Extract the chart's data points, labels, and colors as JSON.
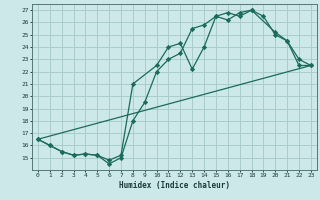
{
  "title": "",
  "xlabel": "Humidex (Indice chaleur)",
  "ylabel": "",
  "bg_color": "#cce8e8",
  "grid_color": "#aacccc",
  "line_color": "#1a6b5a",
  "xlim": [
    -0.5,
    23.5
  ],
  "ylim": [
    14,
    27.5
  ],
  "xticks": [
    0,
    1,
    2,
    3,
    4,
    5,
    6,
    7,
    8,
    9,
    10,
    11,
    12,
    13,
    14,
    15,
    16,
    17,
    18,
    19,
    20,
    21,
    22,
    23
  ],
  "yticks": [
    15,
    16,
    17,
    18,
    19,
    20,
    21,
    22,
    23,
    24,
    25,
    26,
    27
  ],
  "line1_x": [
    0,
    1,
    2,
    3,
    4,
    5,
    6,
    7,
    8,
    9,
    10,
    11,
    12,
    13,
    14,
    15,
    16,
    17,
    18,
    19,
    20,
    21,
    22,
    23
  ],
  "line1_y": [
    16.5,
    16.0,
    15.5,
    15.2,
    15.3,
    15.2,
    14.5,
    15.0,
    18.0,
    19.5,
    22.0,
    23.0,
    23.5,
    25.5,
    25.8,
    26.5,
    26.8,
    26.5,
    27.0,
    26.5,
    25.0,
    24.5,
    23.0,
    22.5
  ],
  "line2_x": [
    0,
    1,
    2,
    3,
    4,
    5,
    6,
    7,
    8,
    10,
    11,
    12,
    13,
    14,
    15,
    16,
    17,
    18,
    20,
    21,
    22,
    23
  ],
  "line2_y": [
    16.5,
    16.0,
    15.5,
    15.2,
    15.3,
    15.2,
    14.8,
    15.2,
    21.0,
    22.5,
    24.0,
    24.3,
    22.2,
    24.0,
    26.5,
    26.2,
    26.8,
    27.0,
    25.2,
    24.5,
    22.5,
    22.5
  ],
  "line3_x": [
    0,
    23
  ],
  "line3_y": [
    16.5,
    22.5
  ]
}
